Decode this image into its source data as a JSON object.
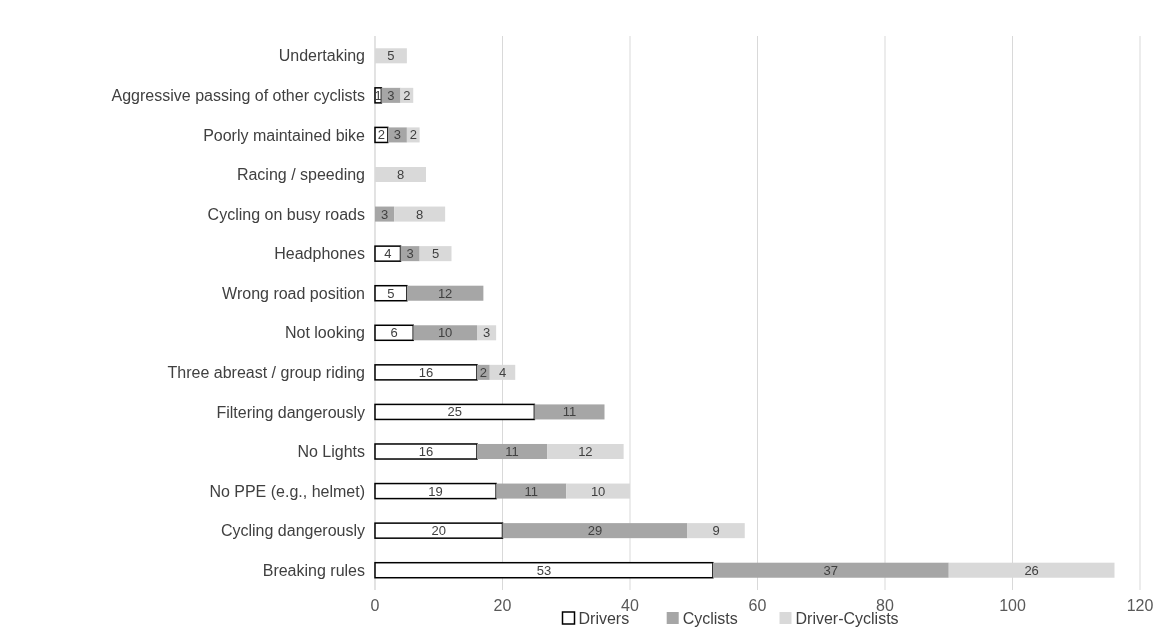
{
  "chart_data": {
    "type": "bar",
    "orientation": "horizontal",
    "stacked": true,
    "data_labels": true,
    "grid": "x",
    "legend": "bottom",
    "categories": [
      "Undertaking",
      "Aggressive passing of other cyclists",
      "Poorly maintained bike",
      "Racing / speeding",
      "Cycling on busy roads",
      "Headphones",
      "Wrong road position",
      "Not looking",
      "Three abreast / group riding",
      "Filtering dangerously",
      "No Lights",
      "No PPE (e.g., helmet)",
      "Cycling dangerously",
      "Breaking rules"
    ],
    "series": [
      {
        "name": "Drivers",
        "color": "#ffffff",
        "values": [
          null,
          1,
          2,
          null,
          null,
          4,
          5,
          6,
          16,
          25,
          16,
          19,
          20,
          53
        ]
      },
      {
        "name": "Cyclists",
        "color": "#a6a6a6",
        "values": [
          null,
          3,
          3,
          null,
          3,
          3,
          12,
          10,
          2,
          11,
          11,
          11,
          29,
          37
        ]
      },
      {
        "name": "Driver-Cyclists",
        "color": "#d9d9d9",
        "values": [
          5,
          2,
          2,
          8,
          8,
          5,
          null,
          3,
          4,
          null,
          12,
          10,
          9,
          26
        ]
      }
    ],
    "xlim": [
      0,
      120
    ],
    "xticks": [
      0,
      20,
      40,
      60,
      80,
      100,
      120
    ]
  }
}
